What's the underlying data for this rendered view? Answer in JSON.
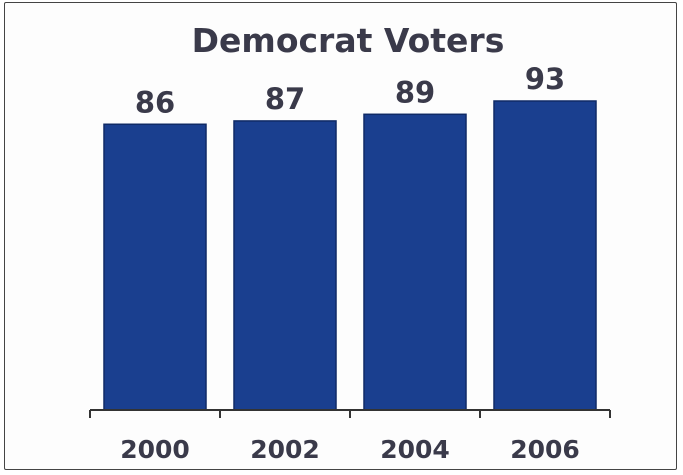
{
  "chart_data": {
    "type": "bar",
    "title": "Democrat Voters",
    "categories": [
      "2000",
      "2002",
      "2004",
      "2006"
    ],
    "values": [
      86,
      87,
      89,
      93
    ],
    "xlabel": "",
    "ylabel": "",
    "ylim": [
      0,
      93
    ],
    "grid": false,
    "legend": "none",
    "colors": {
      "bar": "#1a3f8f",
      "bar_edge": "#0f2a66",
      "text": "#3a3a4a",
      "axis": "#333333"
    }
  }
}
